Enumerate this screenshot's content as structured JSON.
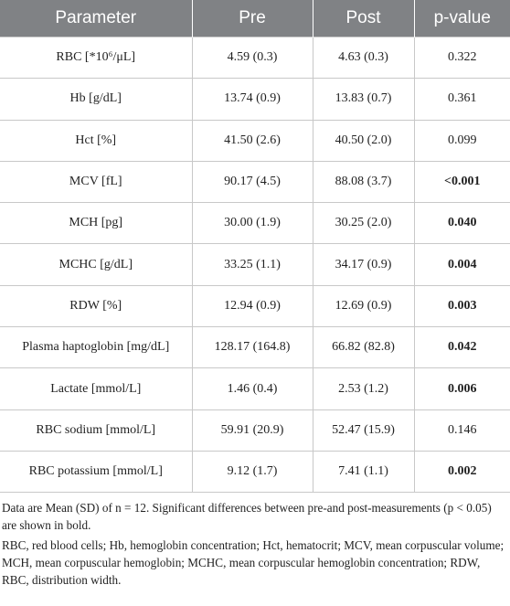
{
  "table": {
    "columns": [
      "Parameter",
      "Pre",
      "Post",
      "p-value"
    ],
    "rows": [
      [
        "RBC [*10⁶/μL]",
        "4.59 (0.3)",
        "4.63 (0.3)",
        "0.322"
      ],
      [
        "Hb [g/dL]",
        "13.74 (0.9)",
        "13.83 (0.7)",
        "0.361"
      ],
      [
        "Hct [%]",
        "41.50 (2.6)",
        "40.50 (2.0)",
        "0.099"
      ],
      [
        "MCV [fL]",
        "90.17 (4.5)",
        "88.08 (3.7)",
        "<0.001"
      ],
      [
        "MCH [pg]",
        "30.00 (1.9)",
        "30.25 (2.0)",
        "0.040"
      ],
      [
        "MCHC [g/dL]",
        "33.25 (1.1)",
        "34.17 (0.9)",
        "0.004"
      ],
      [
        "RDW [%]",
        "12.94 (0.9)",
        "12.69 (0.9)",
        "0.003"
      ],
      [
        "Plasma haptoglobin [mg/dL]",
        "128.17 (164.8)",
        "66.82 (82.8)",
        "0.042"
      ],
      [
        "Lactate [mmol/L]",
        "1.46 (0.4)",
        "2.53 (1.2)",
        "0.006"
      ],
      [
        "RBC sodium [mmol/L]",
        "59.91 (20.9)",
        "52.47 (15.9)",
        "0.146"
      ],
      [
        "RBC potassium [mmol/L]",
        "9.12 (1.7)",
        "7.41 (1.1)",
        "0.002"
      ]
    ],
    "significant": [
      false,
      false,
      false,
      true,
      true,
      true,
      true,
      true,
      true,
      false,
      true
    ]
  },
  "footnotes": [
    "Data are Mean (SD) of n = 12. Significant differences between pre-and post-measurements (p < 0.05) are shown in bold.",
    "RBC, red blood cells; Hb, hemoglobin concentration; Hct, hematocrit; MCV, mean corpuscular volume; MCH, mean corpuscular hemoglobin; MCHC, mean corpuscular hemoglobin concentration; RDW, RBC, distribution width."
  ]
}
